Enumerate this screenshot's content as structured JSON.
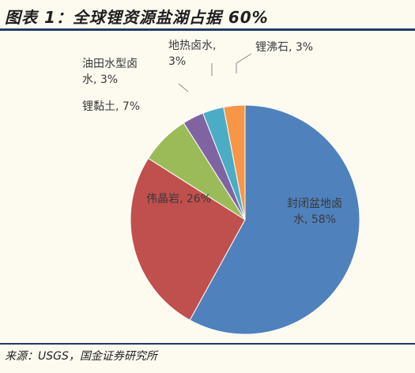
{
  "header": {
    "title": "图表 1：全球锂资源盐湖占据 60%"
  },
  "footer": {
    "source": "来源：USGS，国金证券研究所"
  },
  "chart_data": {
    "type": "pie",
    "title": "图表 1：全球锂资源盐湖占据 60%",
    "slices": [
      {
        "name": "封闭盆地卤水",
        "value": 58,
        "label_lines": [
          "封闭盆地卤",
          "水, 58%"
        ],
        "color": "#4f81bd"
      },
      {
        "name": "伟晶岩",
        "value": 26,
        "label_lines": [
          "伟晶岩, 26%"
        ],
        "color": "#c0504d"
      },
      {
        "name": "锂黏土",
        "value": 7,
        "label_lines": [
          "锂黏土, 7%"
        ],
        "color": "#9bbb59"
      },
      {
        "name": "油田水型卤水",
        "value": 3,
        "label_lines": [
          "油田水型卤",
          "水, 3%"
        ],
        "color": "#8064a2"
      },
      {
        "name": "地热卤水",
        "value": 3,
        "label_lines": [
          "地热卤水,",
          "3%"
        ],
        "color": "#4bacc6"
      },
      {
        "name": "锂沸石",
        "value": 3,
        "label_lines": [
          "锂沸石, 3%"
        ],
        "color": "#f79646"
      }
    ],
    "start_angle_deg": 0,
    "direction": "clockwise",
    "legend": "none"
  }
}
